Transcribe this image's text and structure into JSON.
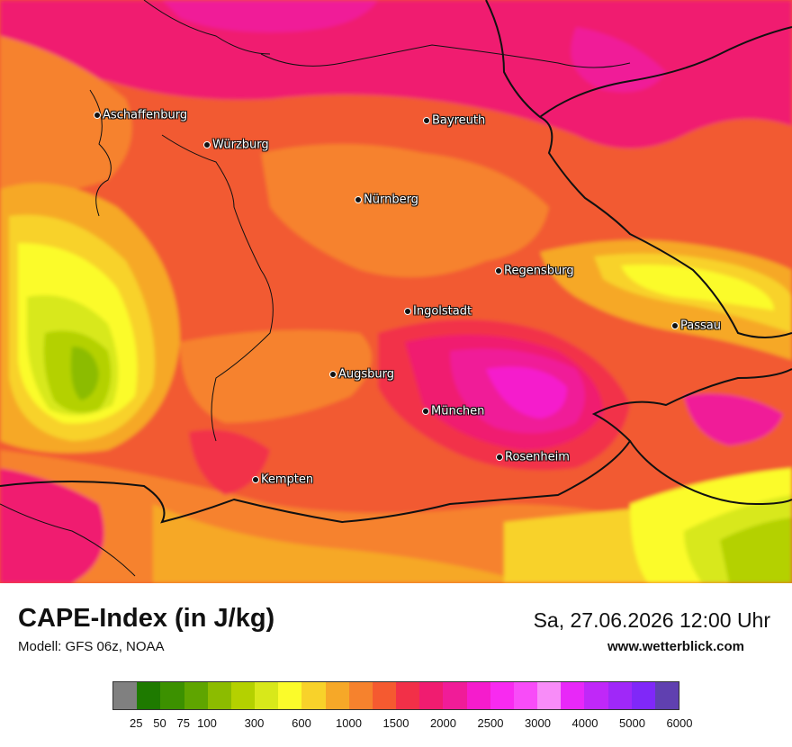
{
  "map": {
    "cities": [
      {
        "name": "Aschaffenburg"
      },
      {
        "name": "Würzburg"
      },
      {
        "name": "Bayreuth"
      },
      {
        "name": "Nürnberg"
      },
      {
        "name": "Regensburg"
      },
      {
        "name": "Ingolstadt"
      },
      {
        "name": "Passau"
      },
      {
        "name": "Augsburg"
      },
      {
        "name": "München"
      },
      {
        "name": "Rosenheim"
      },
      {
        "name": "Kempten"
      }
    ]
  },
  "footer": {
    "title": "CAPE-Index (in J/kg)",
    "model": "Modell: GFS 06z, NOAA",
    "datetime": "Sa, 27.06.2026 12:00 Uhr",
    "website": "www.wetterblick.com"
  },
  "legend": {
    "colors": [
      "#808080",
      "#1e7a00",
      "#3c9100",
      "#5fa500",
      "#8cbc00",
      "#b4d100",
      "#d8e81a",
      "#fbfb2a",
      "#f8d22a",
      "#f6a828",
      "#f6822d",
      "#f55a30",
      "#f23048",
      "#f01c70",
      "#f01c98",
      "#f51ccc",
      "#f82af0",
      "#f84cf8",
      "#f88cf8",
      "#e828f8",
      "#c028f8",
      "#a028f8",
      "#8028f8",
      "#6040b0"
    ],
    "ticks": [
      {
        "label": "25",
        "index": 1
      },
      {
        "label": "50",
        "index": 2
      },
      {
        "label": "75",
        "index": 3
      },
      {
        "label": "100",
        "index": 4
      },
      {
        "label": "300",
        "index": 6
      },
      {
        "label": "600",
        "index": 8
      },
      {
        "label": "1000",
        "index": 10
      },
      {
        "label": "1500",
        "index": 12
      },
      {
        "label": "2000",
        "index": 14
      },
      {
        "label": "2500",
        "index": 16
      },
      {
        "label": "3000",
        "index": 18
      },
      {
        "label": "4000",
        "index": 20
      },
      {
        "label": "5000",
        "index": 22
      },
      {
        "label": "6000",
        "index": 24
      }
    ]
  }
}
